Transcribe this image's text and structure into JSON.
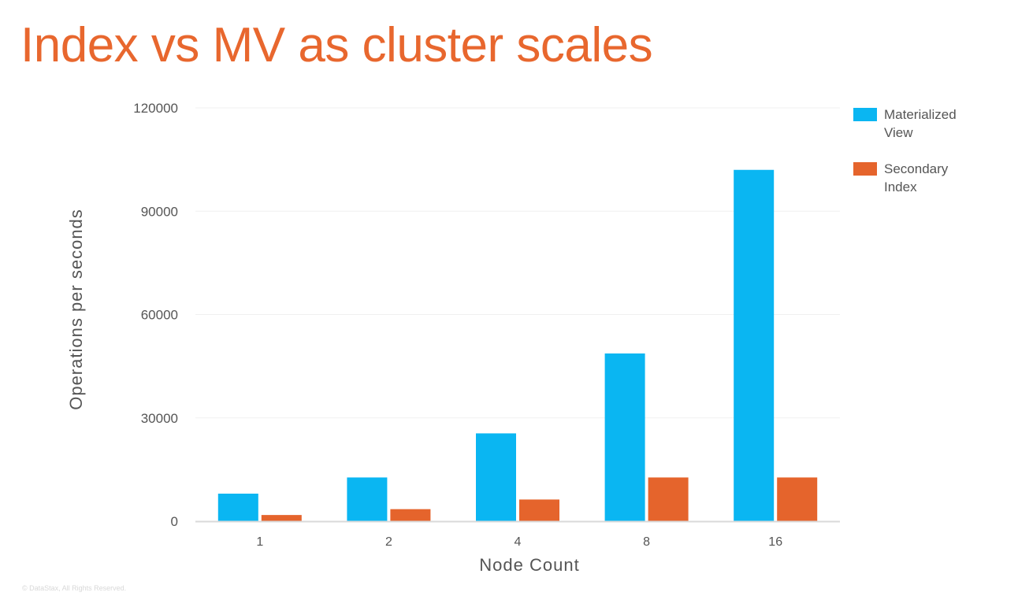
{
  "slide": {
    "title": "Index vs MV as cluster scales",
    "footer": "© DataStax, All Rights Reserved."
  },
  "colors": {
    "title": "#e8672e",
    "materialized_view": "#0ab6f2",
    "secondary_index": "#e5642c",
    "axis_text": "#555555",
    "grid": "#f0f0f0"
  },
  "chart_data": {
    "type": "bar",
    "title": "",
    "xlabel": "Node Count",
    "ylabel": "Operations per seconds",
    "categories": [
      "1",
      "2",
      "4",
      "8",
      "16"
    ],
    "series": [
      {
        "name": "Materialized View",
        "values": [
          8000,
          12700,
          25500,
          48700,
          102000
        ]
      },
      {
        "name": "Secondary Index",
        "values": [
          1800,
          3500,
          6300,
          12700,
          12700
        ]
      }
    ],
    "ylim": [
      0,
      120000
    ],
    "yticks": [
      "0",
      "30000",
      "60000",
      "90000",
      "120000"
    ],
    "grid": true,
    "legend": "top-right"
  }
}
